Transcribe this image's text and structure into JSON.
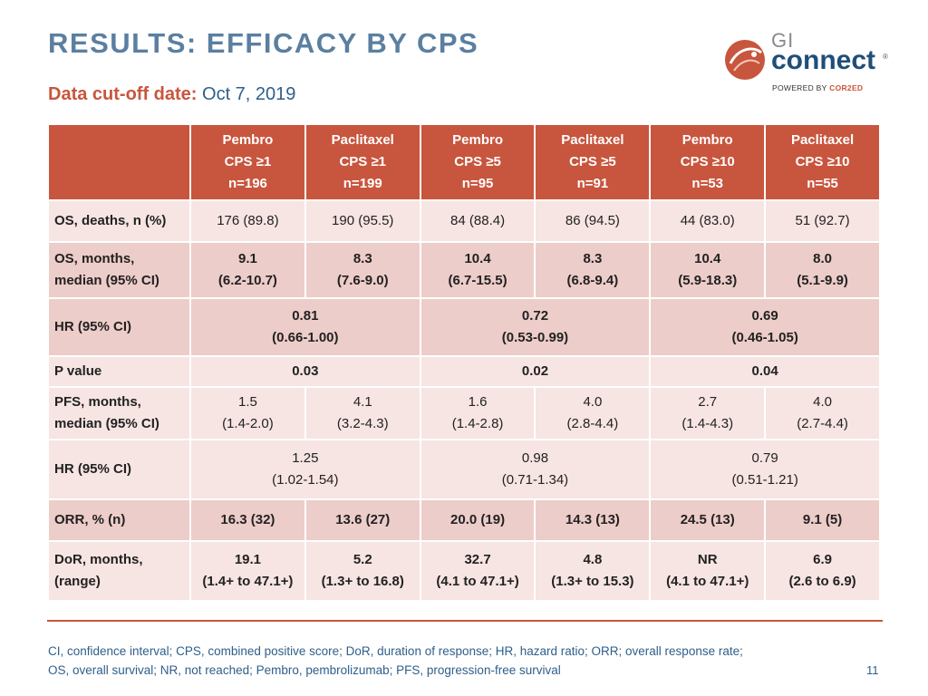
{
  "title": "RESULTS: EFFICACY BY CPS",
  "cutoff": {
    "label": "Data cut-off date:",
    "value": "Oct 7, 2019"
  },
  "logo": {
    "gi": "GI",
    "connect": "connect",
    "reg": "®",
    "powered_prefix": "POWERED BY ",
    "powered_brand": "COR2ED"
  },
  "colors": {
    "accent": "#c8553d",
    "title": "#5b7fa0",
    "light_row": "#f7e5e3",
    "dark_row": "#edcdc9"
  },
  "table": {
    "headers": [
      {
        "l1": "Pembro",
        "l2": "CPS ≥1",
        "l3": "n=196"
      },
      {
        "l1": "Paclitaxel",
        "l2": "CPS ≥1",
        "l3": "n=199"
      },
      {
        "l1": "Pembro",
        "l2": "CPS ≥5",
        "l3": "n=95"
      },
      {
        "l1": "Paclitaxel",
        "l2": "CPS ≥5",
        "l3": "n=91"
      },
      {
        "l1": "Pembro",
        "l2": "CPS ≥10",
        "l3": "n=53"
      },
      {
        "l1": "Paclitaxel",
        "l2": "CPS ≥10",
        "l3": "n=55"
      }
    ],
    "os_deaths": {
      "label": "OS, deaths, n (%)",
      "values": [
        "176 (89.8)",
        "190 (95.5)",
        "84 (88.4)",
        "86 (94.5)",
        "44 (83.0)",
        "51 (92.7)"
      ]
    },
    "os_months": {
      "label_l1": "OS, months,",
      "label_l2": "median (95% CI)",
      "values": [
        {
          "a": "9.1",
          "b": "(6.2-10.7)"
        },
        {
          "a": "8.3",
          "b": "(7.6-9.0)"
        },
        {
          "a": "10.4",
          "b": "(6.7-15.5)"
        },
        {
          "a": "8.3",
          "b": "(6.8-9.4)"
        },
        {
          "a": "10.4",
          "b": "(5.9-18.3)"
        },
        {
          "a": "8.0",
          "b": "(5.1-9.9)"
        }
      ]
    },
    "os_hr": {
      "label": "HR (95% CI)",
      "values": [
        {
          "a": "0.81",
          "b": "(0.66-1.00)"
        },
        {
          "a": "0.72",
          "b": "(0.53-0.99)"
        },
        {
          "a": "0.69",
          "b": "(0.46-1.05)"
        }
      ]
    },
    "p_value": {
      "label": "P value",
      "values": [
        "0.03",
        "0.02",
        "0.04"
      ]
    },
    "pfs_months": {
      "label_l1": "PFS, months,",
      "label_l2": "median (95% CI)",
      "values": [
        {
          "a": "1.5",
          "b": "(1.4-2.0)"
        },
        {
          "a": "4.1",
          "b": "(3.2-4.3)"
        },
        {
          "a": "1.6",
          "b": "(1.4-2.8)"
        },
        {
          "a": "4.0",
          "b": "(2.8-4.4)"
        },
        {
          "a": "2.7",
          "b": "(1.4-4.3)"
        },
        {
          "a": "4.0",
          "b": "(2.7-4.4)"
        }
      ]
    },
    "pfs_hr": {
      "label": "HR (95% CI)",
      "values": [
        {
          "a": "1.25",
          "b": "(1.02-1.54)"
        },
        {
          "a": "0.98",
          "b": "(0.71-1.34)"
        },
        {
          "a": "0.79",
          "b": "(0.51-1.21)"
        }
      ]
    },
    "orr": {
      "label": "ORR, % (n)",
      "values": [
        "16.3 (32)",
        "13.6 (27)",
        "20.0 (19)",
        "14.3 (13)",
        "24.5 (13)",
        "9.1 (5)"
      ]
    },
    "dor": {
      "label_l1": "DoR, months,",
      "label_l2": "(range)",
      "values": [
        {
          "a": "19.1",
          "b": "(1.4+ to 47.1+)"
        },
        {
          "a": "5.2",
          "b": "(1.3+ to 16.8)"
        },
        {
          "a": "32.7",
          "b": "(4.1 to 47.1+)"
        },
        {
          "a": "4.8",
          "b": "(1.3+ to 15.3)"
        },
        {
          "a": "NR",
          "b": "(4.1 to 47.1+)"
        },
        {
          "a": "6.9",
          "b": "(2.6 to 6.9)"
        }
      ]
    }
  },
  "footnote": {
    "line1": "CI, confidence interval; CPS, combined positive score; DoR, duration of response; HR, hazard ratio; ORR; overall response rate;",
    "line2": "OS, overall survival; NR, not reached; Pembro, pembrolizumab; PFS, progression-free survival"
  },
  "page_number": "11"
}
